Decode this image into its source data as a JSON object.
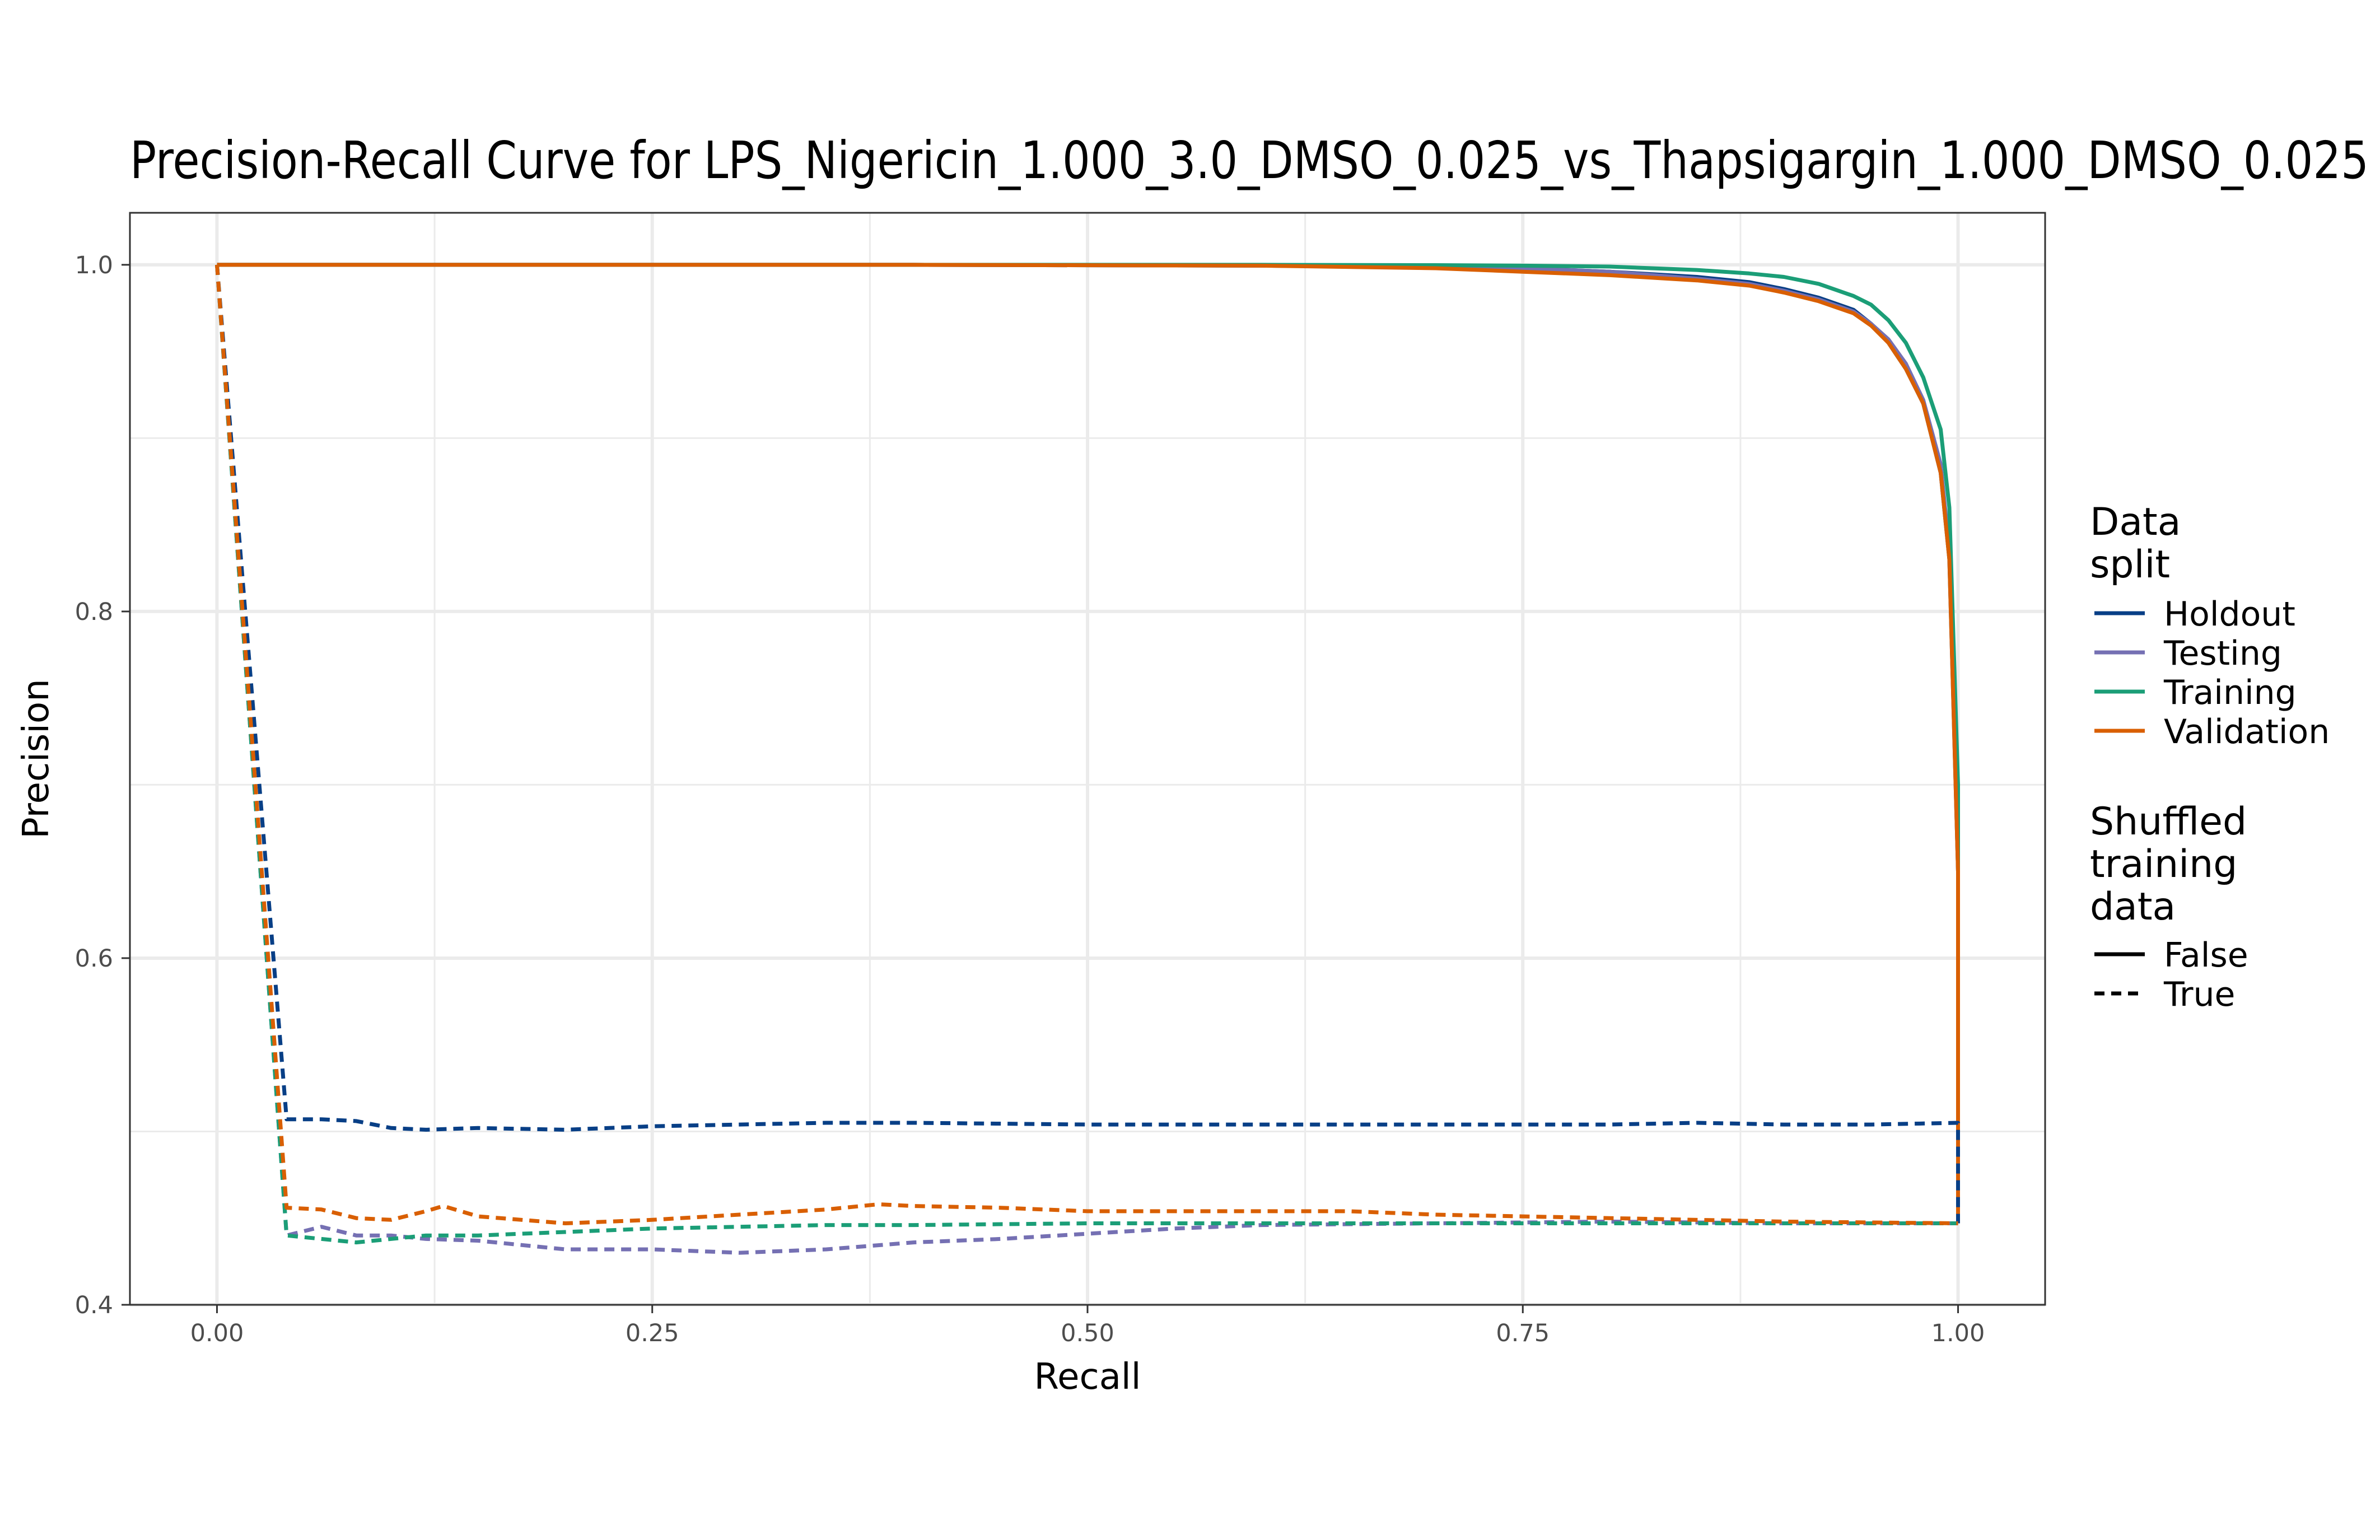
{
  "chart_data": {
    "type": "line",
    "title": "Precision-Recall Curve for LPS_Nigericin_1.000_3.0_DMSO_0.025_vs_Thapsigargin_1.000_DMSO_0.025",
    "xlabel": "Recall",
    "ylabel": "Precision",
    "xlim": [
      -0.05,
      1.05
    ],
    "ylim": [
      0.4,
      1.03
    ],
    "xticks": [
      "0.00",
      "0.25",
      "0.50",
      "0.75",
      "1.00"
    ],
    "yticks": [
      "0.4",
      "0.6",
      "0.8",
      "1.0"
    ],
    "xtick_values": [
      0,
      0.25,
      0.5,
      0.75,
      1.0
    ],
    "ytick_values": [
      0.4,
      0.6,
      0.8,
      1.0
    ],
    "grid": true,
    "legend_position": "right",
    "legend": {
      "color_title": "Data\nsplit",
      "color_entries": [
        "Holdout",
        "Testing",
        "Training",
        "Validation"
      ],
      "linetype_title": "Shuffled\ntraining\ndata",
      "linetype_entries": [
        "False",
        "True"
      ]
    },
    "colors": {
      "Holdout": "#083f86",
      "Testing": "#7570b3",
      "Training": "#1b9e77",
      "Validation": "#d95f02"
    },
    "series": [
      {
        "name": "Holdout",
        "shuffled": "False",
        "x": [
          0,
          0.05,
          0.2,
          0.4,
          0.6,
          0.7,
          0.75,
          0.8,
          0.85,
          0.88,
          0.9,
          0.92,
          0.94,
          0.95,
          0.96,
          0.97,
          0.98,
          0.99,
          0.995,
          1.0,
          1.0
        ],
        "y": [
          1.0,
          1.0,
          1.0,
          1.0,
          0.9995,
          0.999,
          0.998,
          0.996,
          0.993,
          0.99,
          0.986,
          0.981,
          0.974,
          0.966,
          0.955,
          0.94,
          0.92,
          0.88,
          0.83,
          0.65,
          0.447
        ]
      },
      {
        "name": "Testing",
        "shuffled": "False",
        "x": [
          0,
          0.05,
          0.2,
          0.4,
          0.6,
          0.7,
          0.75,
          0.8,
          0.85,
          0.88,
          0.9,
          0.92,
          0.94,
          0.95,
          0.96,
          0.97,
          0.98,
          0.99,
          0.995,
          1.0,
          1.0
        ],
        "y": [
          1.0,
          1.0,
          1.0,
          1.0,
          0.9995,
          0.999,
          0.998,
          0.996,
          0.992,
          0.989,
          0.985,
          0.98,
          0.973,
          0.966,
          0.957,
          0.943,
          0.922,
          0.885,
          0.835,
          0.65,
          0.447
        ]
      },
      {
        "name": "Training",
        "shuffled": "False",
        "x": [
          0,
          0.05,
          0.2,
          0.4,
          0.6,
          0.7,
          0.75,
          0.8,
          0.85,
          0.88,
          0.9,
          0.92,
          0.94,
          0.95,
          0.96,
          0.97,
          0.98,
          0.99,
          0.995,
          1.0,
          1.0
        ],
        "y": [
          1.0,
          1.0,
          1.0,
          1.0,
          1.0,
          0.9998,
          0.9995,
          0.999,
          0.997,
          0.995,
          0.993,
          0.989,
          0.982,
          0.977,
          0.968,
          0.955,
          0.935,
          0.905,
          0.86,
          0.7,
          0.447
        ]
      },
      {
        "name": "Validation",
        "shuffled": "False",
        "x": [
          0,
          0.05,
          0.2,
          0.4,
          0.6,
          0.7,
          0.75,
          0.8,
          0.85,
          0.88,
          0.9,
          0.92,
          0.94,
          0.95,
          0.96,
          0.97,
          0.98,
          0.99,
          0.995,
          1.0,
          1.0
        ],
        "y": [
          1.0,
          1.0,
          1.0,
          1.0,
          0.9995,
          0.998,
          0.996,
          0.994,
          0.991,
          0.988,
          0.984,
          0.979,
          0.972,
          0.965,
          0.955,
          0.94,
          0.92,
          0.88,
          0.83,
          0.65,
          0.447
        ]
      },
      {
        "name": "Holdout",
        "shuffled": "True",
        "x": [
          0,
          0.04,
          0.06,
          0.08,
          0.1,
          0.12,
          0.15,
          0.2,
          0.25,
          0.3,
          0.35,
          0.4,
          0.5,
          0.55,
          0.6,
          0.65,
          0.7,
          0.75,
          0.8,
          0.85,
          0.9,
          0.95,
          1.0,
          1.0
        ],
        "y": [
          1.0,
          0.507,
          0.507,
          0.506,
          0.502,
          0.501,
          0.502,
          0.501,
          0.503,
          0.504,
          0.505,
          0.505,
          0.504,
          0.504,
          0.504,
          0.504,
          0.504,
          0.504,
          0.504,
          0.505,
          0.504,
          0.504,
          0.505,
          0.447
        ]
      },
      {
        "name": "Testing",
        "shuffled": "True",
        "x": [
          0,
          0.04,
          0.06,
          0.08,
          0.1,
          0.12,
          0.15,
          0.2,
          0.25,
          0.3,
          0.35,
          0.4,
          0.45,
          0.5,
          0.55,
          0.6,
          0.7,
          0.8,
          0.9,
          1.0
        ],
        "y": [
          1.0,
          0.44,
          0.445,
          0.44,
          0.44,
          0.438,
          0.437,
          0.432,
          0.432,
          0.43,
          0.432,
          0.436,
          0.438,
          0.441,
          0.444,
          0.446,
          0.447,
          0.448,
          0.447,
          0.447
        ]
      },
      {
        "name": "Training",
        "shuffled": "True",
        "x": [
          0,
          0.04,
          0.06,
          0.08,
          0.1,
          0.12,
          0.15,
          0.2,
          0.25,
          0.3,
          0.35,
          0.4,
          0.5,
          0.6,
          0.7,
          0.8,
          0.9,
          1.0
        ],
        "y": [
          1.0,
          0.44,
          0.438,
          0.436,
          0.438,
          0.44,
          0.44,
          0.442,
          0.444,
          0.445,
          0.446,
          0.446,
          0.447,
          0.447,
          0.447,
          0.447,
          0.447,
          0.447
        ]
      },
      {
        "name": "Validation",
        "shuffled": "True",
        "x": [
          0,
          0.04,
          0.06,
          0.08,
          0.1,
          0.12,
          0.13,
          0.15,
          0.2,
          0.25,
          0.3,
          0.35,
          0.38,
          0.4,
          0.45,
          0.5,
          0.55,
          0.6,
          0.65,
          0.7,
          0.75,
          0.8,
          0.9,
          1.0,
          1.0
        ],
        "y": [
          1.0,
          0.456,
          0.455,
          0.45,
          0.449,
          0.454,
          0.457,
          0.451,
          0.447,
          0.449,
          0.452,
          0.455,
          0.458,
          0.457,
          0.456,
          0.454,
          0.454,
          0.454,
          0.454,
          0.452,
          0.451,
          0.45,
          0.448,
          0.447,
          0.447
        ]
      }
    ]
  }
}
